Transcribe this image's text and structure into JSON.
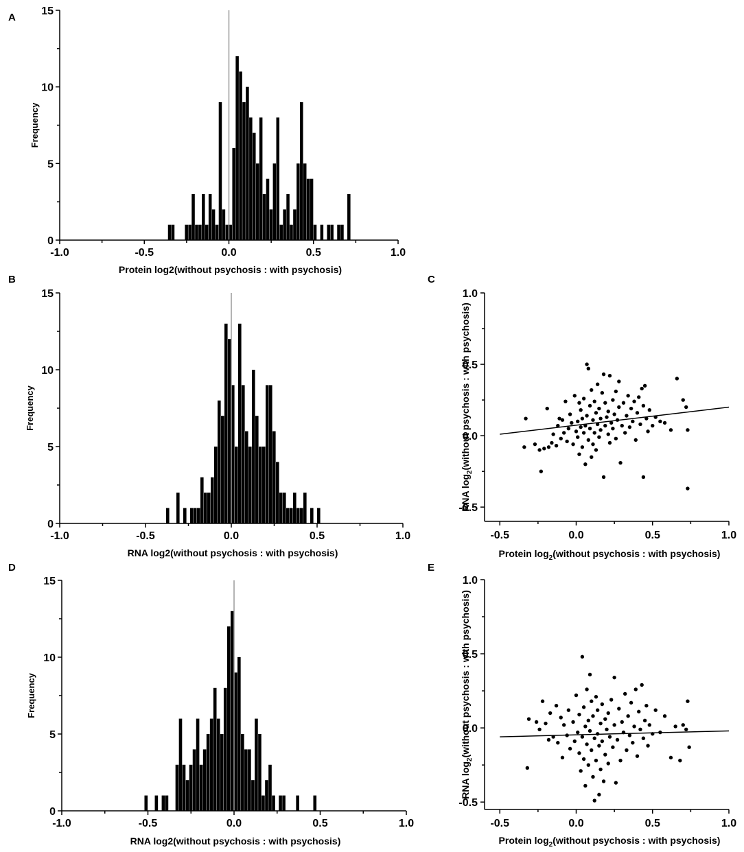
{
  "chart_data": [
    {
      "type": "bar",
      "panel_label": "A",
      "xlabel": "Protein log2(without psychosis :  with psychosis)",
      "ylabel": "Frequency",
      "xlim": [
        -1.0,
        1.0
      ],
      "ylim": [
        0,
        15
      ],
      "xticks": [
        "-1.0",
        "-0.5",
        "0.0",
        "0.5",
        "1.0"
      ],
      "yticks": [
        "0",
        "5",
        "10",
        "15"
      ],
      "bin_width": 0.02,
      "bin_centers": [
        -0.35,
        -0.33,
        -0.25,
        -0.23,
        -0.21,
        -0.19,
        -0.17,
        -0.15,
        -0.13,
        -0.11,
        -0.09,
        -0.07,
        -0.05,
        -0.03,
        -0.01,
        0.01,
        0.03,
        0.05,
        0.07,
        0.09,
        0.11,
        0.13,
        0.15,
        0.17,
        0.19,
        0.21,
        0.23,
        0.25,
        0.27,
        0.29,
        0.31,
        0.33,
        0.35,
        0.37,
        0.39,
        0.41,
        0.43,
        0.45,
        0.47,
        0.49,
        0.51,
        0.55,
        0.59,
        0.61,
        0.65,
        0.67,
        0.71
      ],
      "values": [
        1,
        1,
        1,
        1,
        3,
        1,
        1,
        3,
        1,
        3,
        2,
        1,
        9,
        2,
        1,
        1,
        6,
        12,
        11,
        9,
        10,
        8,
        7,
        5,
        8,
        3,
        4,
        2,
        5,
        8,
        1,
        2,
        3,
        1,
        2,
        5,
        9,
        5,
        4,
        4,
        1,
        1,
        1,
        1,
        1,
        1,
        3
      ],
      "zero_line": true
    },
    {
      "type": "bar",
      "panel_label": "B",
      "xlabel": "RNA log2(without psychosis :  with psychosis)",
      "ylabel": "Frequency",
      "xlim": [
        -1.0,
        1.0
      ],
      "ylim": [
        0,
        15
      ],
      "xticks": [
        "-1.0",
        "-0.5",
        "0.0",
        "0.5",
        "1.0"
      ],
      "yticks": [
        "0",
        "5",
        "10",
        "15"
      ],
      "bin_width": 0.02,
      "bin_centers": [
        -0.37,
        -0.31,
        -0.27,
        -0.23,
        -0.21,
        -0.19,
        -0.17,
        -0.15,
        -0.13,
        -0.11,
        -0.09,
        -0.07,
        -0.05,
        -0.03,
        -0.01,
        0.01,
        0.03,
        0.05,
        0.07,
        0.09,
        0.11,
        0.13,
        0.15,
        0.17,
        0.19,
        0.21,
        0.23,
        0.25,
        0.27,
        0.29,
        0.31,
        0.33,
        0.35,
        0.37,
        0.39,
        0.41,
        0.43,
        0.47,
        0.51
      ],
      "values": [
        1,
        2,
        1,
        1,
        1,
        1,
        3,
        2,
        2,
        3,
        5,
        8,
        7,
        13,
        12,
        9,
        5,
        13,
        9,
        6,
        5,
        10,
        7,
        5,
        5,
        9,
        9,
        6,
        4,
        2,
        2,
        1,
        1,
        2,
        1,
        1,
        2,
        1,
        1
      ],
      "zero_line": true
    },
    {
      "type": "scatter",
      "panel_label": "C",
      "xlabel_main": "Protein log",
      "xlabel_sub": "2",
      "xlabel_rest": "(without psychosis : with psychosis)",
      "ylabel_main": "RNA log",
      "ylabel_sub": "2",
      "ylabel_rest": "(without psychosis : with psychosis)",
      "xlim": [
        -0.6,
        1.0
      ],
      "ylim": [
        -0.6,
        1.0
      ],
      "xticks": [
        "-0.5",
        "0.0",
        "0.5",
        "1.0"
      ],
      "yticks": [
        "-0.5",
        "0.0",
        "0.5",
        "1.0"
      ],
      "regression_line": {
        "x": [
          -0.5,
          1.0
        ],
        "y": [
          0.01,
          0.2
        ]
      },
      "points": [
        [
          -0.33,
          0.12
        ],
        [
          -0.34,
          -0.08
        ],
        [
          -0.27,
          -0.06
        ],
        [
          -0.24,
          -0.1
        ],
        [
          -0.23,
          -0.25
        ],
        [
          -0.21,
          -0.09
        ],
        [
          -0.19,
          0.19
        ],
        [
          -0.18,
          -0.08
        ],
        [
          -0.16,
          -0.05
        ],
        [
          -0.15,
          0.01
        ],
        [
          -0.13,
          -0.07
        ],
        [
          -0.12,
          0.07
        ],
        [
          -0.11,
          0.12
        ],
        [
          -0.1,
          -0.02
        ],
        [
          -0.09,
          0.11
        ],
        [
          -0.08,
          0.02
        ],
        [
          -0.07,
          0.24
        ],
        [
          -0.06,
          -0.04
        ],
        [
          -0.05,
          0.05
        ],
        [
          -0.04,
          0.15
        ],
        [
          -0.03,
          0.09
        ],
        [
          -0.02,
          -0.06
        ],
        [
          -0.01,
          0.28
        ],
        [
          0.0,
          0.03
        ],
        [
          0.01,
          0.1
        ],
        [
          0.01,
          -0.01
        ],
        [
          0.02,
          0.23
        ],
        [
          0.02,
          -0.13
        ],
        [
          0.03,
          0.06
        ],
        [
          0.03,
          0.18
        ],
        [
          0.04,
          -0.08
        ],
        [
          0.04,
          0.12
        ],
        [
          0.05,
          0.02
        ],
        [
          0.05,
          0.26
        ],
        [
          0.06,
          -0.2
        ],
        [
          0.06,
          0.07
        ],
        [
          0.07,
          0.5
        ],
        [
          0.07,
          0.14
        ],
        [
          0.08,
          -0.03
        ],
        [
          0.08,
          0.47
        ],
        [
          0.09,
          0.21
        ],
        [
          0.09,
          0.05
        ],
        [
          0.1,
          -0.15
        ],
        [
          0.1,
          0.32
        ],
        [
          0.11,
          0.11
        ],
        [
          0.11,
          -0.06
        ],
        [
          0.12,
          0.02
        ],
        [
          0.12,
          0.24
        ],
        [
          0.13,
          0.16
        ],
        [
          0.13,
          -0.1
        ],
        [
          0.14,
          0.08
        ],
        [
          0.14,
          0.36
        ],
        [
          0.15,
          0.19
        ],
        [
          0.15,
          -0.01
        ],
        [
          0.16,
          0.04
        ],
        [
          0.16,
          0.12
        ],
        [
          0.17,
          0.3
        ],
        [
          0.18,
          0.43
        ],
        [
          0.18,
          -0.29
        ],
        [
          0.19,
          0.07
        ],
        [
          0.19,
          0.23
        ],
        [
          0.2,
          0.13
        ],
        [
          0.21,
          0.01
        ],
        [
          0.21,
          0.17
        ],
        [
          0.22,
          0.42
        ],
        [
          0.22,
          -0.05
        ],
        [
          0.23,
          0.09
        ],
        [
          0.24,
          0.25
        ],
        [
          0.24,
          0.05
        ],
        [
          0.25,
          0.15
        ],
        [
          0.26,
          0.31
        ],
        [
          0.26,
          -0.02
        ],
        [
          0.27,
          0.11
        ],
        [
          0.28,
          0.38
        ],
        [
          0.28,
          0.2
        ],
        [
          0.29,
          -0.19
        ],
        [
          0.3,
          0.07
        ],
        [
          0.31,
          0.23
        ],
        [
          0.32,
          0.02
        ],
        [
          0.33,
          0.14
        ],
        [
          0.34,
          0.28
        ],
        [
          0.35,
          0.06
        ],
        [
          0.36,
          0.19
        ],
        [
          0.37,
          0.1
        ],
        [
          0.38,
          0.24
        ],
        [
          0.39,
          -0.03
        ],
        [
          0.4,
          0.16
        ],
        [
          0.41,
          0.27
        ],
        [
          0.42,
          0.08
        ],
        [
          0.43,
          0.33
        ],
        [
          0.44,
          -0.29
        ],
        [
          0.44,
          0.21
        ],
        [
          0.45,
          0.35
        ],
        [
          0.46,
          0.12
        ],
        [
          0.47,
          0.03
        ],
        [
          0.48,
          0.18
        ],
        [
          0.5,
          0.07
        ],
        [
          0.52,
          0.13
        ],
        [
          0.55,
          0.1
        ],
        [
          0.58,
          0.09
        ],
        [
          0.62,
          0.04
        ],
        [
          0.66,
          0.4
        ],
        [
          0.7,
          0.25
        ],
        [
          0.72,
          0.2
        ],
        [
          0.73,
          0.04
        ],
        [
          0.73,
          -0.37
        ]
      ]
    },
    {
      "type": "bar",
      "panel_label": "D",
      "xlabel": "RNA log2(without psychosis :  with psychosis)",
      "ylabel": "Frequency",
      "xlim": [
        -1.0,
        1.0
      ],
      "ylim": [
        0,
        15
      ],
      "xticks": [
        "-1.0",
        "-0.5",
        "0.0",
        "0.5",
        "1.0"
      ],
      "yticks": [
        "0",
        "5",
        "10",
        "15"
      ],
      "bin_width": 0.02,
      "bin_centers": [
        -0.51,
        -0.45,
        -0.41,
        -0.39,
        -0.33,
        -0.31,
        -0.29,
        -0.27,
        -0.25,
        -0.23,
        -0.21,
        -0.19,
        -0.17,
        -0.15,
        -0.13,
        -0.11,
        -0.09,
        -0.07,
        -0.05,
        -0.03,
        -0.01,
        0.01,
        0.03,
        0.05,
        0.07,
        0.09,
        0.11,
        0.13,
        0.15,
        0.17,
        0.19,
        0.21,
        0.23,
        0.27,
        0.29,
        0.37,
        0.47
      ],
      "values": [
        1,
        1,
        1,
        1,
        3,
        6,
        3,
        2,
        3,
        4,
        6,
        3,
        4,
        5,
        6,
        8,
        6,
        5,
        8,
        12,
        13,
        9,
        10,
        5,
        4,
        4,
        2,
        6,
        5,
        1,
        2,
        3,
        1,
        1,
        1,
        1,
        1
      ],
      "zero_line": true
    },
    {
      "type": "scatter",
      "panel_label": "E",
      "xlabel_main": "Protein log",
      "xlabel_sub": "2",
      "xlabel_rest": "(without psychosis : with psychosis)",
      "ylabel_main": "RNA log",
      "ylabel_sub": "2",
      "ylabel_rest": "(without psychosis : with psychosis)",
      "xlim": [
        -0.6,
        1.0
      ],
      "ylim": [
        -0.55,
        1.0
      ],
      "xticks": [
        "-0.5",
        "0.0",
        "0.5",
        "1.0"
      ],
      "yticks": [
        "-0.5",
        "0.0",
        "0.5",
        "1.0"
      ],
      "regression_line": {
        "x": [
          -0.5,
          1.0
        ],
        "y": [
          -0.06,
          -0.02
        ]
      },
      "points": [
        [
          -0.32,
          -0.27
        ],
        [
          -0.31,
          0.06
        ],
        [
          -0.26,
          0.04
        ],
        [
          -0.24,
          -0.01
        ],
        [
          -0.22,
          0.18
        ],
        [
          -0.2,
          0.03
        ],
        [
          -0.18,
          -0.08
        ],
        [
          -0.17,
          0.1
        ],
        [
          -0.15,
          -0.06
        ],
        [
          -0.13,
          0.15
        ],
        [
          -0.12,
          -0.1
        ],
        [
          -0.1,
          0.07
        ],
        [
          -0.09,
          -0.2
        ],
        [
          -0.08,
          0.02
        ],
        [
          -0.06,
          -0.05
        ],
        [
          -0.05,
          0.12
        ],
        [
          -0.04,
          -0.14
        ],
        [
          -0.02,
          0.04
        ],
        [
          -0.01,
          -0.09
        ],
        [
          0.0,
          0.22
        ],
        [
          0.01,
          -0.03
        ],
        [
          0.02,
          -0.17
        ],
        [
          0.02,
          0.09
        ],
        [
          0.03,
          -0.29
        ],
        [
          0.04,
          0.48
        ],
        [
          0.04,
          -0.06
        ],
        [
          0.05,
          0.14
        ],
        [
          0.05,
          -0.21
        ],
        [
          0.06,
          0.01
        ],
        [
          0.06,
          -0.39
        ],
        [
          0.07,
          0.26
        ],
        [
          0.07,
          -0.11
        ],
        [
          0.08,
          0.05
        ],
        [
          0.08,
          -0.25
        ],
        [
          0.09,
          0.36
        ],
        [
          0.09,
          -0.02
        ],
        [
          0.1,
          0.18
        ],
        [
          0.1,
          -0.15
        ],
        [
          0.11,
          -0.33
        ],
        [
          0.11,
          0.08
        ],
        [
          0.12,
          -0.07
        ],
        [
          0.12,
          -0.49
        ],
        [
          0.13,
          0.21
        ],
        [
          0.13,
          -0.22
        ],
        [
          0.14,
          -0.04
        ],
        [
          0.14,
          0.12
        ],
        [
          0.15,
          -0.45
        ],
        [
          0.15,
          -0.12
        ],
        [
          0.16,
          0.03
        ],
        [
          0.16,
          -0.28
        ],
        [
          0.17,
          0.16
        ],
        [
          0.17,
          -0.09
        ],
        [
          0.18,
          -0.36
        ],
        [
          0.19,
          0.06
        ],
        [
          0.19,
          -0.18
        ],
        [
          0.2,
          -0.01
        ],
        [
          0.21,
          0.1
        ],
        [
          0.21,
          -0.24
        ],
        [
          0.22,
          -0.06
        ],
        [
          0.23,
          0.19
        ],
        [
          0.24,
          -0.13
        ],
        [
          0.25,
          0.34
        ],
        [
          0.25,
          0.02
        ],
        [
          0.26,
          -0.37
        ],
        [
          0.27,
          -0.08
        ],
        [
          0.28,
          0.13
        ],
        [
          0.29,
          -0.22
        ],
        [
          0.3,
          0.04
        ],
        [
          0.31,
          -0.03
        ],
        [
          0.32,
          0.23
        ],
        [
          0.33,
          -0.15
        ],
        [
          0.34,
          0.08
        ],
        [
          0.35,
          -0.05
        ],
        [
          0.36,
          0.17
        ],
        [
          0.37,
          -0.1
        ],
        [
          0.38,
          0.01
        ],
        [
          0.39,
          0.26
        ],
        [
          0.4,
          -0.19
        ],
        [
          0.41,
          0.11
        ],
        [
          0.42,
          -0.01
        ],
        [
          0.43,
          0.29
        ],
        [
          0.44,
          -0.07
        ],
        [
          0.45,
          0.05
        ],
        [
          0.46,
          0.15
        ],
        [
          0.47,
          -0.12
        ],
        [
          0.48,
          0.02
        ],
        [
          0.5,
          -0.04
        ],
        [
          0.52,
          0.12
        ],
        [
          0.55,
          -0.03
        ],
        [
          0.58,
          0.08
        ],
        [
          0.62,
          -0.2
        ],
        [
          0.65,
          0.01
        ],
        [
          0.68,
          -0.22
        ],
        [
          0.7,
          0.02
        ],
        [
          0.73,
          0.18
        ],
        [
          0.74,
          -0.13
        ],
        [
          0.72,
          -0.01
        ]
      ]
    }
  ]
}
